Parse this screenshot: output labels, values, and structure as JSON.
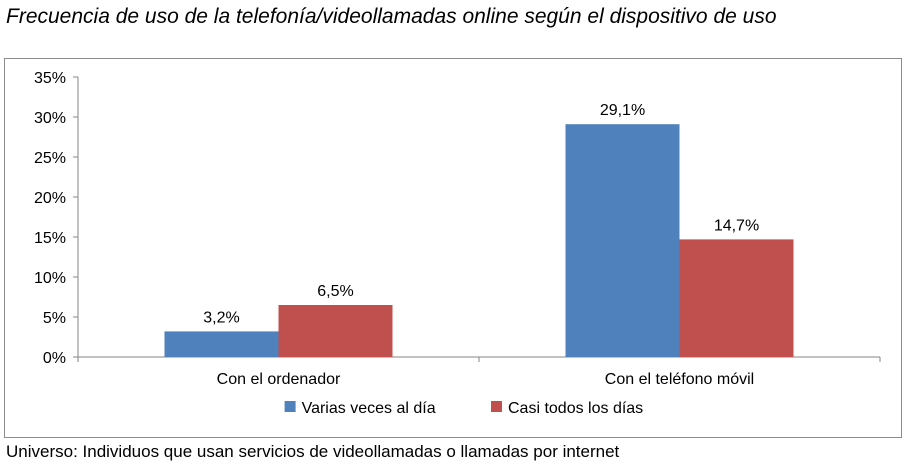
{
  "title": "Frecuencia de uso de la telefonía/videollamadas online según el dispositivo de uso",
  "footer": "Universo: Individuos que usan servicios de videollamadas o llamadas por internet",
  "chart_data": {
    "type": "bar",
    "categories": [
      "Con el ordenador",
      "Con el teléfono móvil"
    ],
    "series": [
      {
        "name": "Varias veces al día",
        "color": "#4f81bd",
        "values": [
          3.2,
          29.1
        ],
        "labels": [
          "3,2%",
          "29,1%"
        ]
      },
      {
        "name": "Casi todos los días",
        "color": "#c0504d",
        "values": [
          6.5,
          14.7
        ],
        "labels": [
          "6,5%",
          "14,7%"
        ]
      }
    ],
    "ylim": [
      0,
      35
    ],
    "yticks": [
      0,
      5,
      10,
      15,
      20,
      25,
      30,
      35
    ],
    "ytick_labels": [
      "0%",
      "5%",
      "10%",
      "15%",
      "20%",
      "25%",
      "30%",
      "35%"
    ],
    "grid": false,
    "legend_position": "bottom"
  }
}
